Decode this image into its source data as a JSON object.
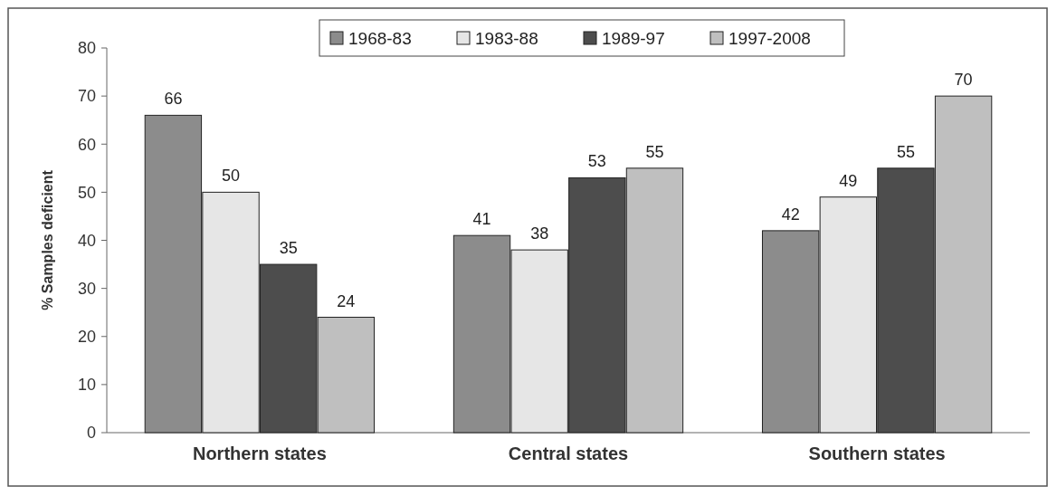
{
  "chart_data": {
    "type": "bar",
    "ylabel": "% Samples deficient",
    "categories": [
      "Northern states",
      "Central states",
      "Southern states"
    ],
    "series": [
      {
        "name": "1968-83",
        "color": "#8c8c8c",
        "values": [
          66,
          41,
          42
        ]
      },
      {
        "name": "1983-88",
        "color": "#e6e6e6",
        "values": [
          50,
          38,
          49
        ]
      },
      {
        "name": "1989-97",
        "color": "#4d4d4d",
        "values": [
          35,
          53,
          55
        ]
      },
      {
        "name": "1997-2008",
        "color": "#bfbfbf",
        "values": [
          24,
          55,
          70
        ]
      }
    ],
    "ylim": [
      0,
      80
    ],
    "yticks": [
      0,
      10,
      20,
      30,
      40,
      50,
      60,
      70,
      80
    ],
    "data_labels": true,
    "legend": "top",
    "grid": false
  }
}
